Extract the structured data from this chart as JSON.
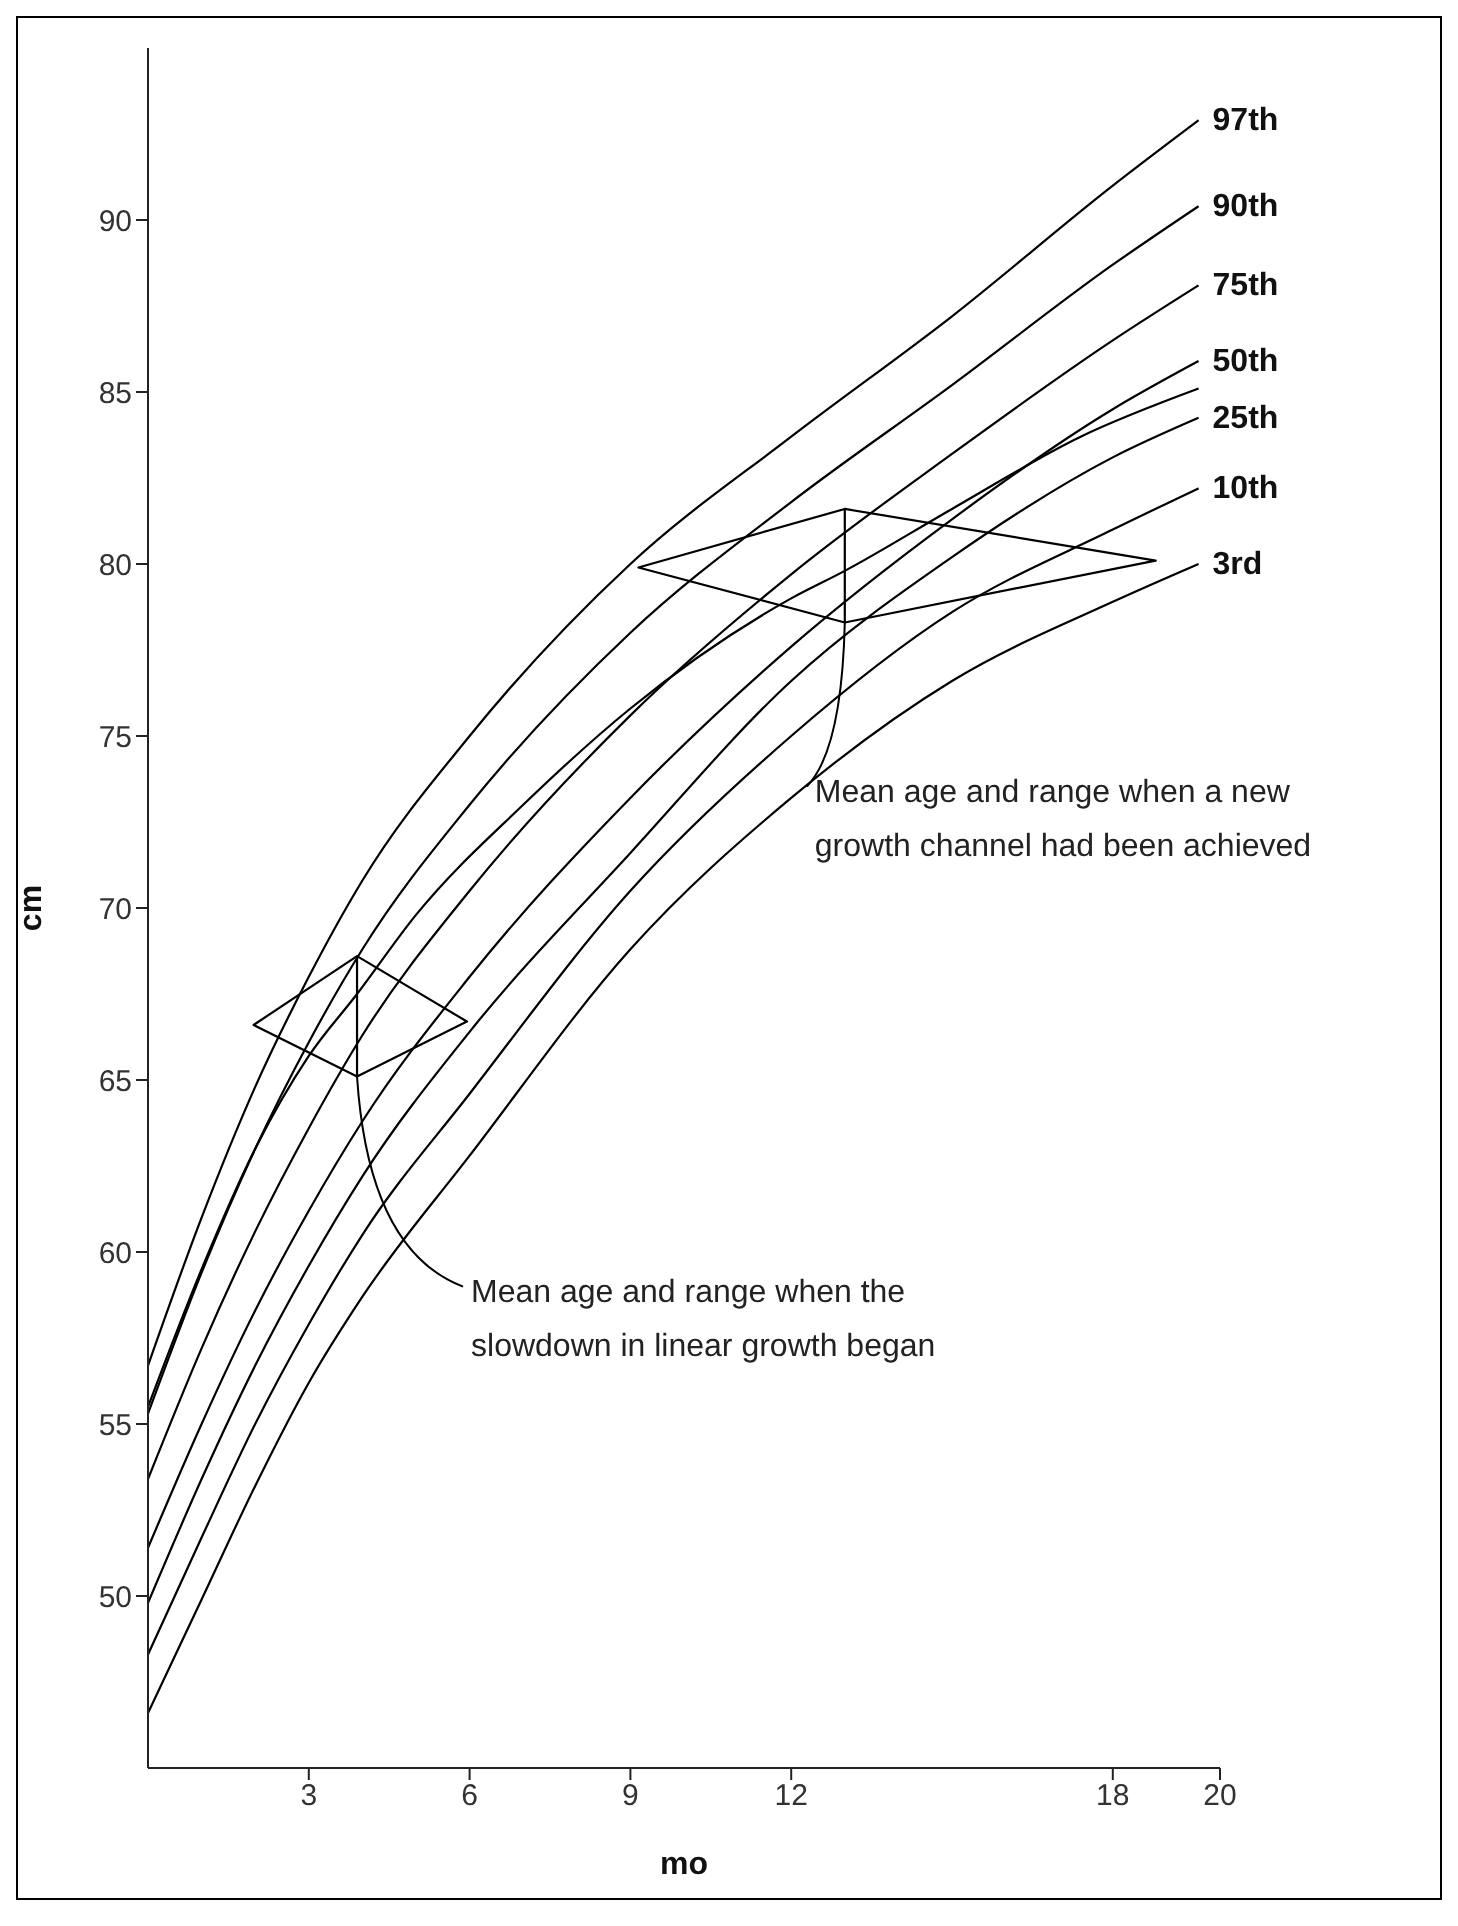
{
  "chart_data": {
    "type": "line",
    "xlabel": "mo",
    "ylabel": "cm",
    "xlim": [
      0,
      20
    ],
    "xticks": [
      3,
      6,
      9,
      12,
      18,
      20
    ],
    "ylim": [
      45,
      95
    ],
    "yticks": [
      50,
      55,
      60,
      65,
      70,
      75,
      80,
      85,
      90
    ],
    "series": [
      {
        "name": "97th",
        "color": "#000000",
        "x": [
          0,
          1,
          2,
          3,
          4,
          6,
          9,
          12,
          15,
          18,
          19.6
        ],
        "values": [
          56.7,
          61,
          64.8,
          68,
          70.8,
          75,
          80,
          83.7,
          87.2,
          91,
          92.9
        ]
      },
      {
        "name": "90th",
        "color": "#000000",
        "x": [
          0,
          1,
          2,
          3,
          4,
          6,
          9,
          12,
          15,
          18,
          19.6
        ],
        "values": [
          55.3,
          59.4,
          63,
          66.1,
          68.8,
          73,
          78,
          81.8,
          85.2,
          88.7,
          90.4
        ]
      },
      {
        "name": "75th",
        "color": "#000000",
        "x": [
          0,
          1,
          2,
          3,
          4,
          6,
          9,
          12,
          15,
          18,
          19.6
        ],
        "values": [
          53.4,
          57.2,
          60.6,
          63.6,
          66.3,
          70.5,
          75.6,
          79.7,
          83.2,
          86.5,
          88.1
        ]
      },
      {
        "name": "50th",
        "color": "#000000",
        "x": [
          0,
          1,
          2,
          3,
          4,
          6,
          9,
          12,
          15,
          18,
          19.6
        ],
        "values": [
          51.4,
          55,
          58.3,
          61.2,
          63.8,
          68,
          73.2,
          77.6,
          81.3,
          84.5,
          85.9
        ]
      },
      {
        "name": "25th",
        "color": "#000000",
        "x": [
          0,
          1,
          2,
          3,
          4,
          6,
          9,
          12,
          15,
          18,
          19.6
        ],
        "values": [
          49.8,
          53.4,
          56.7,
          59.6,
          62.2,
          66.4,
          71.6,
          76.6,
          80.2,
          83.1,
          84.25
        ]
      },
      {
        "name": "10th",
        "color": "#000000",
        "x": [
          0,
          1,
          2,
          3,
          4,
          6,
          9,
          12,
          15,
          18,
          19.6
        ],
        "values": [
          48.3,
          51.7,
          55,
          57.9,
          60.5,
          64.6,
          70.5,
          75,
          78.6,
          81,
          82.2
        ]
      },
      {
        "name": "3rd",
        "color": "#000000",
        "x": [
          0,
          1,
          2,
          3,
          4,
          6,
          9,
          12,
          15,
          18,
          19.6
        ],
        "values": [
          46.6,
          49.9,
          53.2,
          56.2,
          58.7,
          62.8,
          68.8,
          73.2,
          76.6,
          78.9,
          80
        ]
      },
      {
        "color": "#000000",
        "x": [
          0,
          1,
          2,
          3,
          3.9,
          5,
          7,
          9,
          12,
          13,
          15,
          17.4,
          19.6
        ],
        "values": [
          55.5,
          59.5,
          63,
          65.7,
          67.5,
          69.8,
          73,
          75.8,
          79,
          79.8,
          81.6,
          83.7,
          85.1
        ]
      },
      {
        "color": "#000000",
        "x": [
          3.9,
          1.97,
          3.9,
          5.95,
          3.9,
          3.9
        ],
        "values": [
          68.6,
          66.6,
          65.1,
          66.7,
          68.6,
          65.1
        ]
      },
      {
        "color": "#000000",
        "x": [
          13,
          9.15,
          13,
          18.8,
          13,
          13
        ],
        "values": [
          81.6,
          79.9,
          78.3,
          80.1,
          81.6,
          78.3
        ]
      }
    ],
    "annotations": [
      {
        "text": "Mean age and range when the slowdown in linear growth began",
        "x": 3.9,
        "y": 65.1
      },
      {
        "text": "Mean age and range when a new growth channel had been achieved",
        "x": 13,
        "y": 78.3
      }
    ]
  }
}
